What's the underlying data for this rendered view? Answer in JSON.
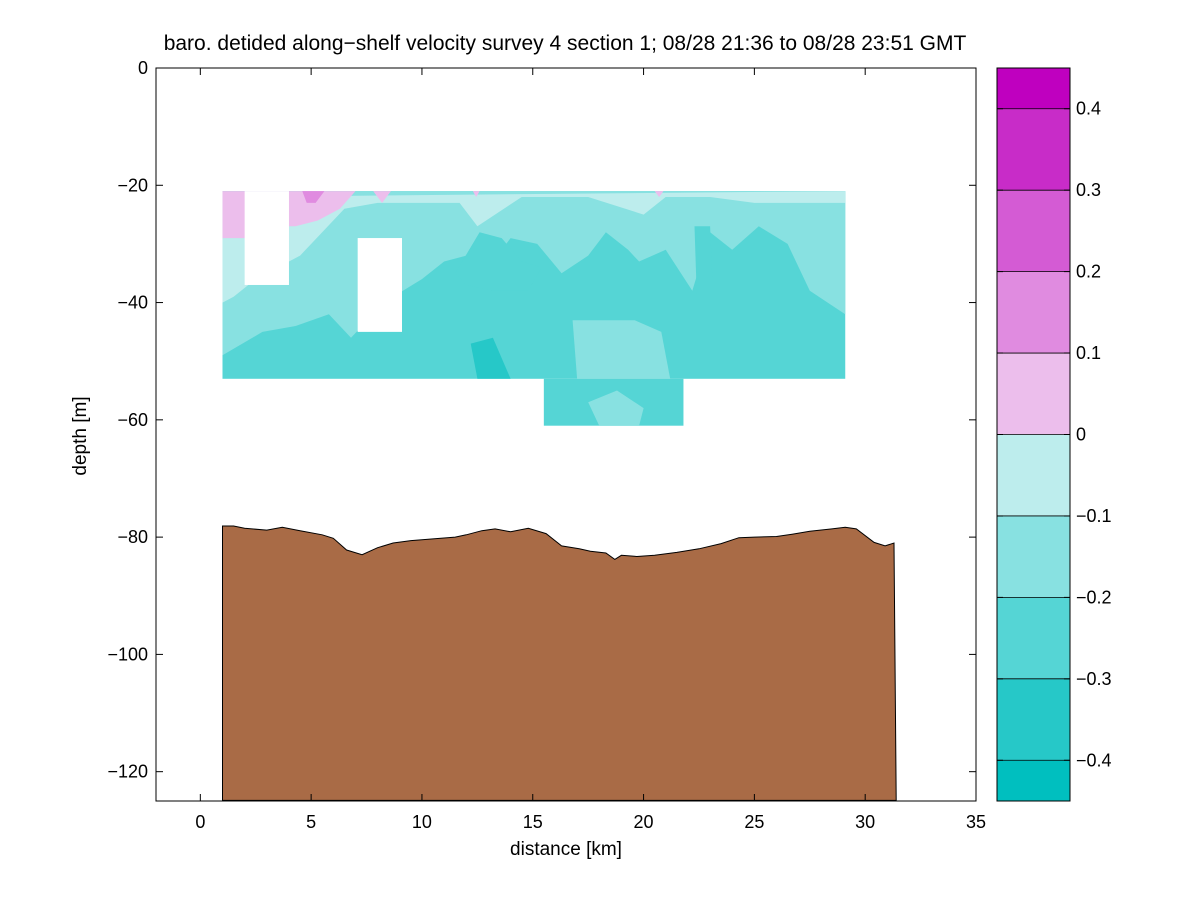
{
  "chart_data": {
    "type": "heatmap",
    "title": "baro. detided along−shelf velocity survey 4 section 1; 08/28 21:36 to 08/28 23:51 GMT",
    "xlabel": "distance [km]",
    "ylabel": "depth [m]",
    "xlim": [
      -2,
      35
    ],
    "ylim": [
      -125,
      0
    ],
    "xticks": [
      0,
      5,
      10,
      15,
      20,
      25,
      30,
      35
    ],
    "yticks": [
      0,
      -20,
      -40,
      -60,
      -80,
      -100,
      -120
    ],
    "xtick_labels": [
      "0",
      "5",
      "10",
      "15",
      "20",
      "25",
      "30",
      "35"
    ],
    "ytick_labels": [
      "0",
      "−20",
      "−40",
      "−60",
      "−80",
      "−100",
      "−120"
    ],
    "colorbar": {
      "levels": [
        -0.45,
        -0.4,
        -0.3,
        -0.2,
        -0.1,
        0,
        0.1,
        0.2,
        0.3,
        0.4,
        0.45
      ],
      "bands": [
        {
          "range": [
            -0.45,
            -0.4
          ],
          "color": "#00bfbf"
        },
        {
          "range": [
            -0.4,
            -0.3
          ],
          "color": "#26c8c8"
        },
        {
          "range": [
            -0.3,
            -0.2
          ],
          "color": "#55d5d5"
        },
        {
          "range": [
            -0.2,
            -0.1
          ],
          "color": "#88e1e1"
        },
        {
          "range": [
            -0.1,
            0.0
          ],
          "color": "#bdeded"
        },
        {
          "range": [
            0.0,
            0.1
          ],
          "color": "#ecbeec"
        },
        {
          "range": [
            0.1,
            0.2
          ],
          "color": "#e08be0"
        },
        {
          "range": [
            0.2,
            0.3
          ],
          "color": "#d45bd4"
        },
        {
          "range": [
            0.3,
            0.4
          ],
          "color": "#c82cc8"
        },
        {
          "range": [
            0.4,
            0.45
          ],
          "color": "#bf00bf"
        }
      ],
      "tick_values": [
        0.4,
        0.3,
        0.2,
        0.1,
        0,
        -0.1,
        -0.2,
        -0.3,
        -0.4
      ],
      "tick_labels": [
        "0.4",
        "0.3",
        "0.2",
        "0.1",
        "0",
        "−0.1",
        "−0.2",
        "−0.3",
        "−0.4"
      ]
    },
    "background_value": -0.25,
    "data_region": {
      "main_x": [
        1.0,
        29.1
      ],
      "main_depth": [
        -21,
        -53
      ],
      "deep_x": [
        15.5,
        21.8
      ],
      "deep_depth": [
        -53,
        -61
      ]
    },
    "gaps": [
      {
        "x": [
          2.0,
          4.0
        ],
        "depth": [
          -21,
          -37
        ]
      },
      {
        "x": [
          7.1,
          9.1
        ],
        "depth": [
          -29,
          -45
        ]
      }
    ],
    "patches": [
      {
        "value": -0.15,
        "points": [
          [
            1.0,
            -21
          ],
          [
            29.1,
            -21
          ],
          [
            29.1,
            -42
          ],
          [
            27.5,
            -38
          ],
          [
            26.5,
            -30
          ],
          [
            25.2,
            -27
          ],
          [
            24.0,
            -31
          ],
          [
            23.0,
            -28
          ],
          [
            22.2,
            -38
          ],
          [
            21.0,
            -31
          ],
          [
            19.8,
            -33
          ],
          [
            19.3,
            -31
          ],
          [
            18.3,
            -28
          ],
          [
            17.5,
            -32
          ],
          [
            16.3,
            -35
          ],
          [
            15.2,
            -30
          ],
          [
            14.0,
            -29
          ],
          [
            13.2,
            -33
          ],
          [
            12.0,
            -32
          ],
          [
            11.0,
            -33
          ],
          [
            10.0,
            -36
          ],
          [
            8.7,
            -39
          ],
          [
            7.8,
            -42
          ],
          [
            6.8,
            -46
          ],
          [
            5.8,
            -42
          ],
          [
            4.3,
            -44
          ],
          [
            2.8,
            -45
          ],
          [
            1.0,
            -49
          ]
        ]
      },
      {
        "value": -0.05,
        "points": [
          [
            1.0,
            -22
          ],
          [
            29.1,
            -21
          ],
          [
            29.1,
            -23
          ],
          [
            25.0,
            -23
          ],
          [
            23.0,
            -22
          ],
          [
            21.0,
            -22
          ],
          [
            20.0,
            -25
          ],
          [
            17.5,
            -22
          ],
          [
            16.0,
            -22
          ],
          [
            14.5,
            -22
          ],
          [
            12.5,
            -27
          ],
          [
            11.7,
            -23
          ],
          [
            10.0,
            -23
          ],
          [
            8.0,
            -23
          ],
          [
            6.5,
            -24
          ],
          [
            5.5,
            -28
          ],
          [
            4.5,
            -32
          ],
          [
            3.5,
            -34
          ],
          [
            2.5,
            -36
          ],
          [
            1.5,
            -39
          ],
          [
            1.0,
            -40
          ]
        ]
      },
      {
        "value": 0.05,
        "points": [
          [
            1.0,
            -21
          ],
          [
            7.0,
            -21
          ],
          [
            6.3,
            -24
          ],
          [
            5.3,
            -26
          ],
          [
            4.3,
            -27
          ],
          [
            3.0,
            -27
          ],
          [
            2.0,
            -29
          ],
          [
            1.0,
            -29
          ]
        ]
      },
      {
        "value": 0.15,
        "points": [
          [
            4.6,
            -21
          ],
          [
            5.6,
            -21
          ],
          [
            5.2,
            -23
          ],
          [
            4.8,
            -23
          ]
        ]
      },
      {
        "value": 0.05,
        "points": [
          [
            7.8,
            -21
          ],
          [
            8.6,
            -21
          ],
          [
            8.2,
            -23
          ]
        ]
      },
      {
        "value": 0.05,
        "points": [
          [
            12.3,
            -21
          ],
          [
            12.6,
            -21
          ],
          [
            12.45,
            -22
          ]
        ]
      },
      {
        "value": 0.05,
        "points": [
          [
            20.5,
            -21
          ],
          [
            20.9,
            -21
          ],
          [
            20.7,
            -22
          ]
        ]
      },
      {
        "value": -0.25,
        "points": [
          [
            11.5,
            -35
          ],
          [
            12.6,
            -28
          ],
          [
            13.6,
            -29
          ],
          [
            14.5,
            -33
          ],
          [
            15.4,
            -34
          ],
          [
            14.8,
            -38
          ],
          [
            13.2,
            -38
          ],
          [
            12.0,
            -37
          ]
        ]
      },
      {
        "value": -0.25,
        "points": [
          [
            22.3,
            -27
          ],
          [
            23.0,
            -27
          ],
          [
            23.1,
            -36
          ],
          [
            22.4,
            -39
          ]
        ]
      },
      {
        "value": -0.15,
        "points": [
          [
            16.8,
            -43
          ],
          [
            18.0,
            -43
          ],
          [
            19.6,
            -43
          ],
          [
            20.8,
            -45
          ],
          [
            21.2,
            -53
          ],
          [
            17.0,
            -53
          ]
        ]
      },
      {
        "value": -0.15,
        "points": [
          [
            17.5,
            -57
          ],
          [
            18.8,
            -55
          ],
          [
            20.0,
            -58
          ],
          [
            19.8,
            -61
          ],
          [
            18.0,
            -61
          ]
        ]
      },
      {
        "value": -0.35,
        "points": [
          [
            12.2,
            -47
          ],
          [
            13.2,
            -46
          ],
          [
            14.0,
            -53
          ],
          [
            12.5,
            -53
          ]
        ]
      }
    ],
    "seafloor": {
      "color": "#a96b46",
      "points": [
        [
          1.0,
          -78.1
        ],
        [
          1.5,
          -78.1
        ],
        [
          2.0,
          -78.5
        ],
        [
          3.0,
          -78.8
        ],
        [
          3.7,
          -78.3
        ],
        [
          4.5,
          -78.9
        ],
        [
          5.5,
          -79.6
        ],
        [
          6.0,
          -80.2
        ],
        [
          6.6,
          -82.2
        ],
        [
          7.3,
          -83.0
        ],
        [
          8.0,
          -81.8
        ],
        [
          8.7,
          -81.0
        ],
        [
          9.5,
          -80.6
        ],
        [
          10.5,
          -80.3
        ],
        [
          11.5,
          -80.0
        ],
        [
          12.0,
          -79.6
        ],
        [
          12.7,
          -78.9
        ],
        [
          13.3,
          -78.6
        ],
        [
          14.0,
          -79.1
        ],
        [
          14.8,
          -78.5
        ],
        [
          15.6,
          -79.4
        ],
        [
          16.3,
          -81.5
        ],
        [
          17.1,
          -82.0
        ],
        [
          17.6,
          -82.4
        ],
        [
          18.3,
          -82.7
        ],
        [
          18.7,
          -83.8
        ],
        [
          19.0,
          -83.1
        ],
        [
          19.7,
          -83.3
        ],
        [
          20.5,
          -83.1
        ],
        [
          21.5,
          -82.6
        ],
        [
          22.5,
          -82.0
        ],
        [
          23.5,
          -81.1
        ],
        [
          24.3,
          -80.1
        ],
        [
          25.0,
          -80.0
        ],
        [
          26.0,
          -79.9
        ],
        [
          26.7,
          -79.5
        ],
        [
          27.5,
          -79.0
        ],
        [
          28.5,
          -78.6
        ],
        [
          29.1,
          -78.3
        ],
        [
          29.6,
          -78.6
        ],
        [
          30.4,
          -80.9
        ],
        [
          30.9,
          -81.5
        ],
        [
          31.3,
          -81.0
        ],
        [
          31.4,
          -124.9
        ],
        [
          1.0,
          -124.9
        ]
      ]
    }
  }
}
